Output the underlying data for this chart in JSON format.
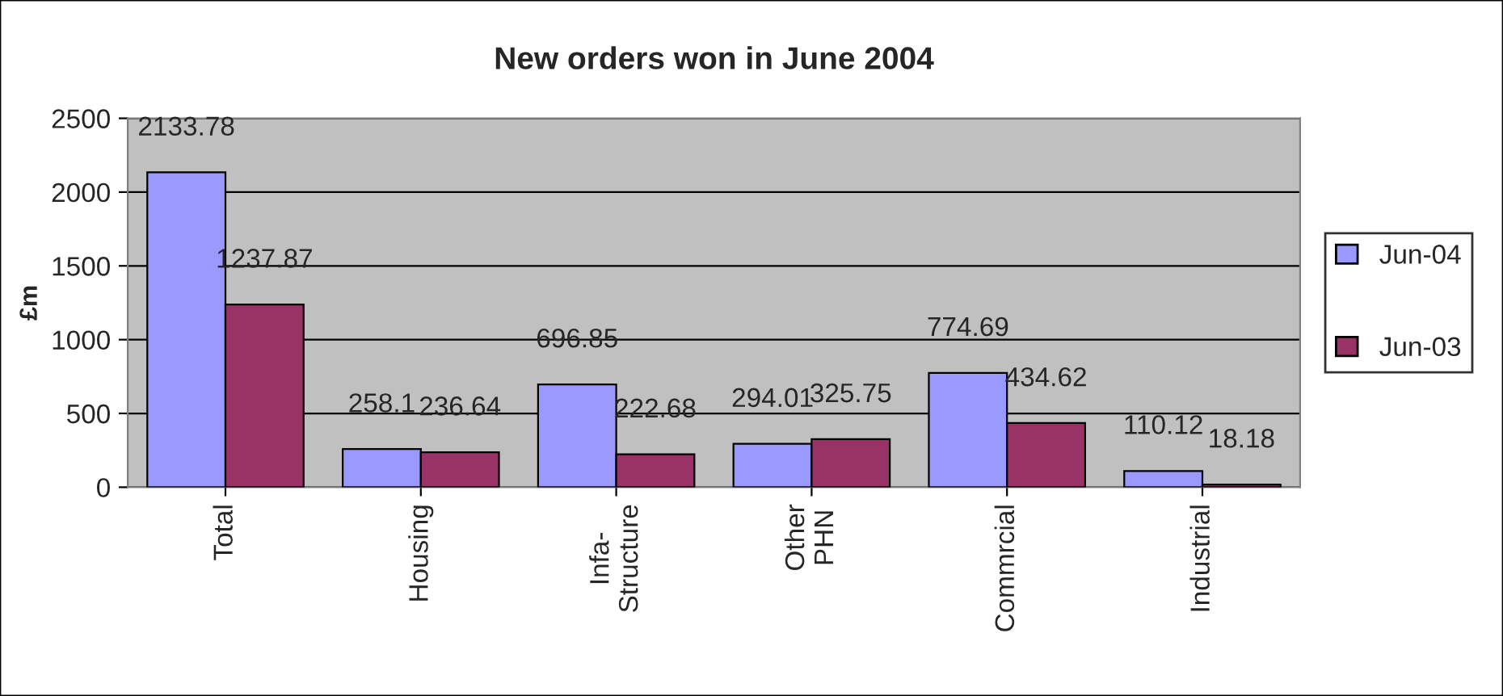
{
  "chart_data": {
    "type": "bar",
    "title": "New orders won in June 2004",
    "ylabel": "£m",
    "categories": [
      "Total",
      "Housing",
      "Infa-\nStructure",
      "Other\nPHN",
      "Commrcial",
      "Industrial"
    ],
    "series": [
      {
        "name": "Jun-04",
        "color": "#9999ff",
        "values": [
          2133.78,
          258.1,
          696.85,
          294.01,
          774.69,
          110.12
        ]
      },
      {
        "name": "Jun-03",
        "color": "#993366",
        "values": [
          1237.87,
          236.64,
          222.68,
          325.75,
          434.62,
          18.18
        ]
      }
    ],
    "ylim": [
      0,
      2500
    ],
    "yticks": [
      0,
      500,
      1000,
      1500,
      2000,
      2500
    ],
    "grid": "y",
    "legend": "right",
    "data_labels": true
  }
}
